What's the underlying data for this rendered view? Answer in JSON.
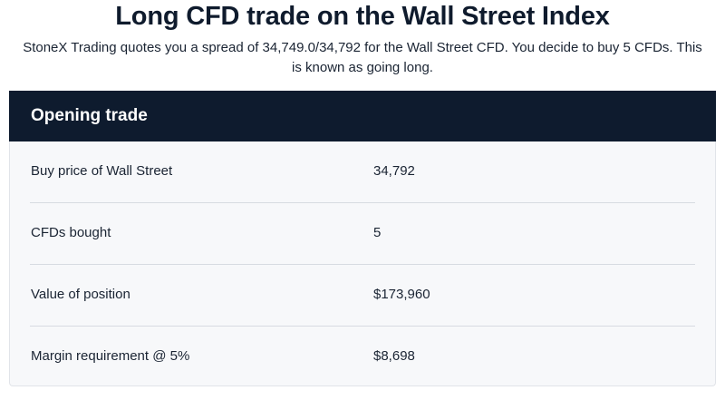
{
  "title": "Long CFD trade on the Wall Street Index",
  "subtitle": "StoneX Trading quotes you a spread of 34,749.0/34,792 for the Wall Street CFD. You decide to buy 5 CFDs. This is known as going long.",
  "table": {
    "header": "Opening trade",
    "rows": [
      {
        "label": "Buy price of Wall Street",
        "value": "34,792"
      },
      {
        "label": "CFDs bought",
        "value": "5"
      },
      {
        "label": "Value of position",
        "value": "$173,960"
      },
      {
        "label": "Margin requirement @ 5%",
        "value": "$8,698"
      }
    ]
  },
  "colors": {
    "header_bg": "#0e1b2e",
    "card_bg": "#f7f8fa",
    "text": "#1a2433"
  }
}
